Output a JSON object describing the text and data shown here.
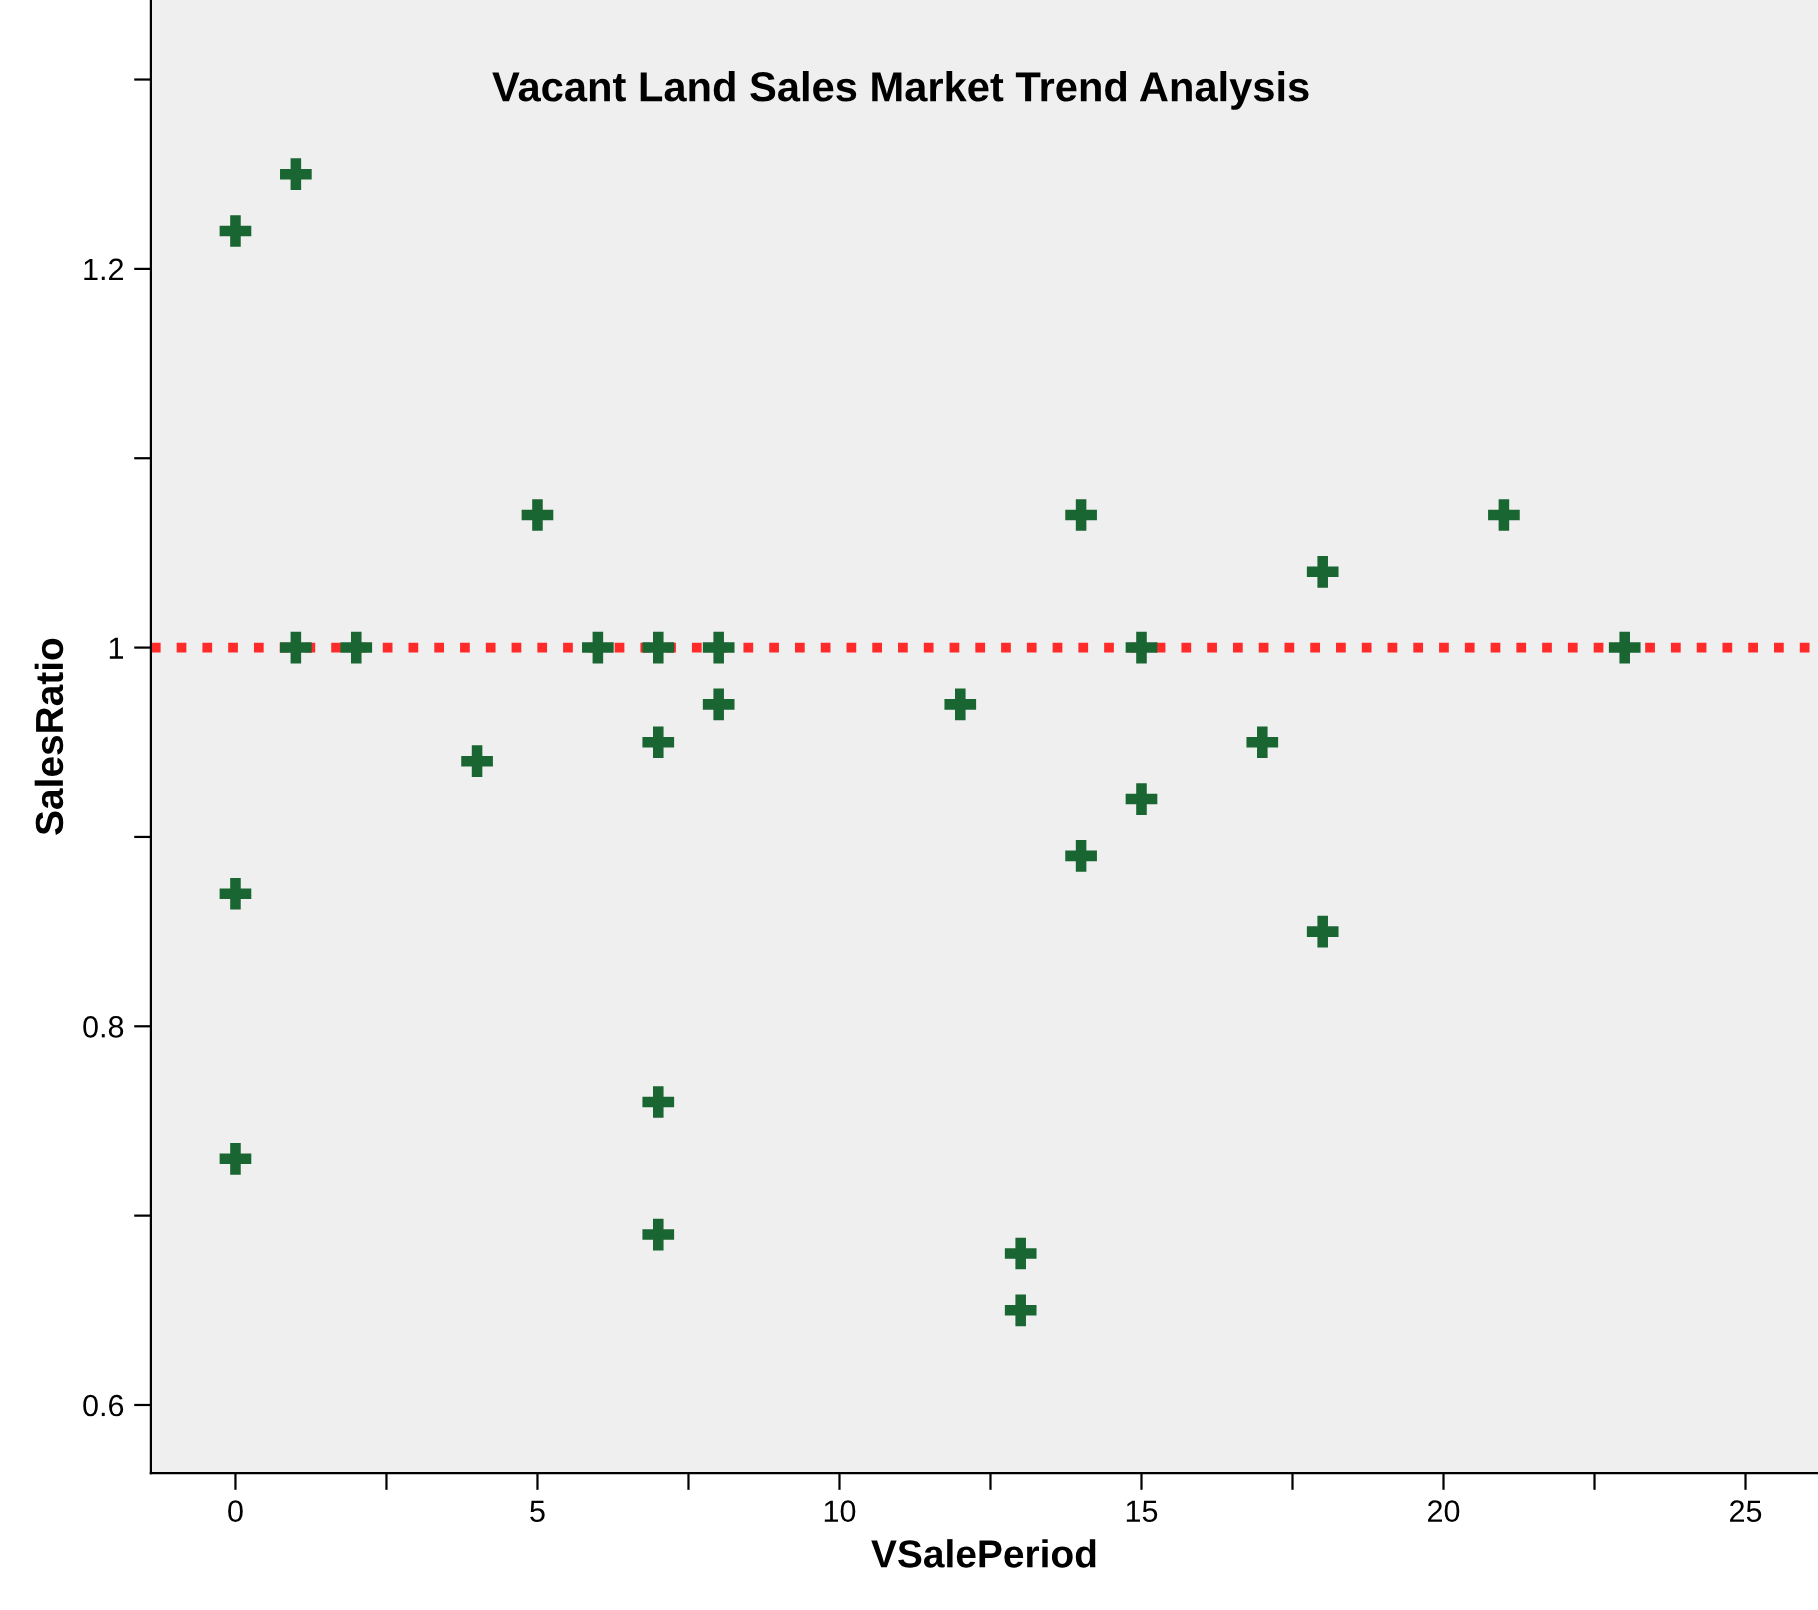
{
  "chart_data": {
    "type": "scatter",
    "title": "Vacant Land Sales Market Trend Analysis",
    "xlabel": "VSalePeriod",
    "ylabel": "SalesRatio",
    "x": [
      0,
      1,
      0,
      0,
      1,
      2,
      4,
      5,
      6,
      7,
      7,
      7,
      7,
      8,
      8,
      12,
      13,
      13,
      14,
      14,
      15,
      15,
      17,
      18,
      18,
      21,
      23
    ],
    "values": [
      1.22,
      1.25,
      0.87,
      0.73,
      1,
      1,
      0.94,
      1.07,
      1,
      1,
      0.95,
      0.76,
      0.69,
      1,
      0.97,
      0.97,
      0.68,
      0.65,
      1.07,
      0.89,
      1,
      0.92,
      0.95,
      1.04,
      0.85,
      1.07,
      1
    ],
    "color": "#1a6632",
    "marker": "cross",
    "grid": false,
    "xlim": [
      -1.4,
      26.2
    ],
    "ylim": [
      0.564,
      1.342
    ],
    "xticks": [
      0,
      {
        "value": 2.5,
        "label": null
      },
      5,
      {
        "value": 7.5,
        "label": null
      },
      10,
      {
        "value": 12.5,
        "label": null
      },
      15,
      {
        "value": 17.5,
        "label": null
      },
      20,
      {
        "value": 22.5,
        "label": null
      },
      25
    ],
    "yticks": [
      0.6,
      {
        "value": 0.7,
        "label": null
      },
      0.8,
      {
        "value": 0.9,
        "label": null
      },
      1,
      {
        "value": 1.1,
        "label": null
      },
      1.2,
      {
        "value": 1.3,
        "label": null
      }
    ],
    "ref_lines": [
      {
        "axis": "y",
        "value": 1,
        "color": "#ff2a2a",
        "line_style": "dotted"
      }
    ]
  }
}
